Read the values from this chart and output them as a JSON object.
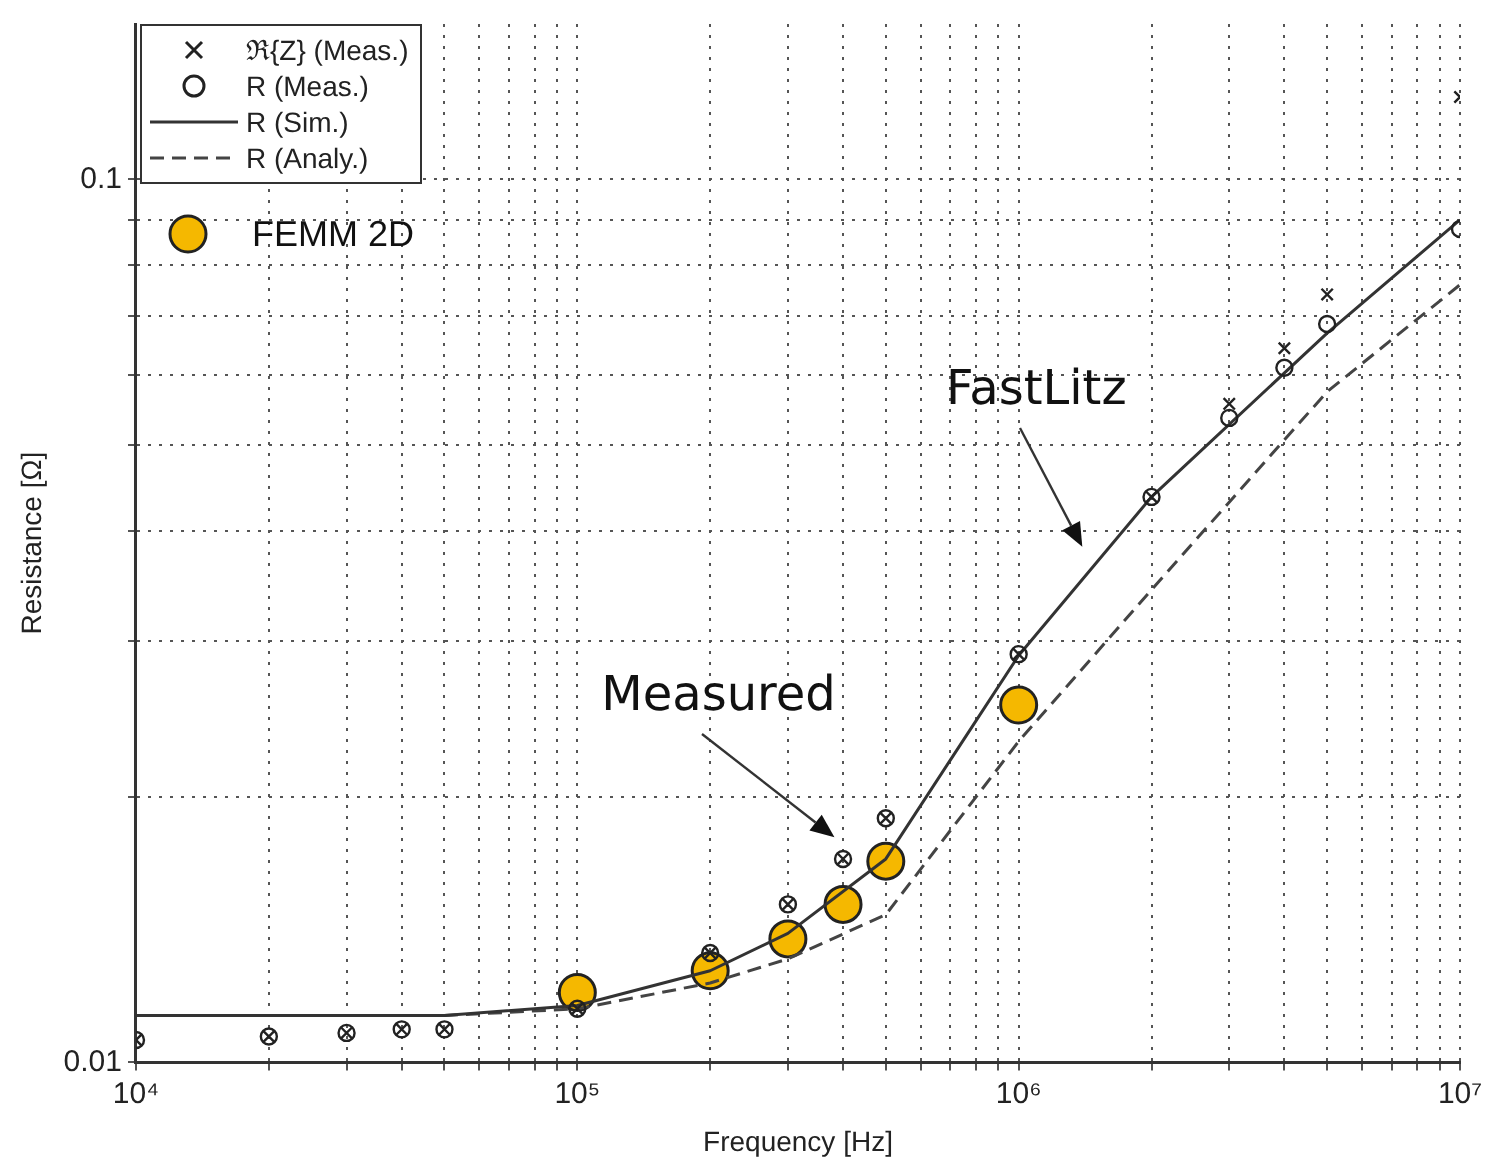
{
  "chart_data": {
    "type": "scatter",
    "xlabel": "Frequency [Hz]",
    "ylabel": "Resistance [Ω]",
    "log": "xy",
    "grid": true,
    "legend": "top left",
    "xlim": [
      10000,
      10000000
    ],
    "ylim": [
      0.01,
      0.15
    ],
    "xticks": [
      {
        "value": 10000,
        "label": "10⁴"
      },
      {
        "value": 20000,
        "label": null
      },
      {
        "value": 30000,
        "label": null
      },
      {
        "value": 40000,
        "label": null
      },
      {
        "value": 50000,
        "label": null
      },
      {
        "value": 60000,
        "label": null
      },
      {
        "value": 70000,
        "label": null
      },
      {
        "value": 80000,
        "label": null
      },
      {
        "value": 90000,
        "label": null
      },
      {
        "value": 100000,
        "label": "10⁵"
      },
      {
        "value": 200000,
        "label": null
      },
      {
        "value": 300000,
        "label": null
      },
      {
        "value": 400000,
        "label": null
      },
      {
        "value": 500000,
        "label": null
      },
      {
        "value": 600000,
        "label": null
      },
      {
        "value": 700000,
        "label": null
      },
      {
        "value": 800000,
        "label": null
      },
      {
        "value": 900000,
        "label": null
      },
      {
        "value": 1000000,
        "label": "10⁶"
      },
      {
        "value": 2000000,
        "label": null
      },
      {
        "value": 3000000,
        "label": null
      },
      {
        "value": 4000000,
        "label": null
      },
      {
        "value": 5000000,
        "label": null
      },
      {
        "value": 6000000,
        "label": null
      },
      {
        "value": 7000000,
        "label": null
      },
      {
        "value": 8000000,
        "label": null
      },
      {
        "value": 9000000,
        "label": null
      },
      {
        "value": 10000000,
        "label": "10⁷"
      }
    ],
    "yticks": [
      0.01,
      {
        "value": 0.02,
        "label": null
      },
      {
        "value": 0.03,
        "label": null
      },
      {
        "value": 0.04,
        "label": null
      },
      {
        "value": 0.05,
        "label": null
      },
      {
        "value": 0.06,
        "label": null
      },
      {
        "value": 0.07,
        "label": null
      },
      {
        "value": 0.08,
        "label": null
      },
      {
        "value": 0.09,
        "label": null
      },
      0.1
    ],
    "x": [
      10000,
      20000,
      30000,
      40000,
      50000,
      100000,
      200000,
      300000,
      400000,
      500000,
      1000000,
      2000000,
      3000000,
      4000000,
      5000000,
      10000000
    ],
    "series": [
      {
        "name": "ℜ{Z} (Meas.)",
        "marker": "cross",
        "color": "#222222",
        "values": [
          0.0106,
          0.0107,
          0.0108,
          0.0109,
          0.0109,
          0.0115,
          0.0133,
          0.0151,
          0.017,
          0.0189,
          0.029,
          0.0437,
          0.0557,
          0.0644,
          0.0741,
          0.124
        ]
      },
      {
        "name": "R (Meas.)",
        "marker": "circle",
        "color": "#222222",
        "values": [
          0.0106,
          0.0107,
          0.0108,
          0.0109,
          0.0109,
          0.0115,
          0.0133,
          0.0151,
          0.017,
          0.0189,
          0.029,
          0.0437,
          0.0537,
          0.0612,
          0.0686,
          0.0879
        ]
      },
      {
        "name": "R (Sim.)",
        "type": "line",
        "line_style": "solid",
        "color": "#333333",
        "x": [
          10000,
          50000,
          100000,
          200000,
          300000,
          500000,
          700000,
          1000000,
          2000000,
          5000000,
          10000000
        ],
        "values": [
          0.0113,
          0.0113,
          0.0116,
          0.0127,
          0.014,
          0.017,
          0.022,
          0.0289,
          0.0437,
          0.067,
          0.09
        ]
      },
      {
        "name": "R (Analy.)",
        "type": "line",
        "line_style": "dashed",
        "color": "#444444",
        "x": [
          10000,
          50000,
          100000,
          200000,
          300000,
          500000,
          1000000,
          2000000,
          5000000,
          10000000
        ],
        "values": [
          0.0113,
          0.0113,
          0.0115,
          0.0123,
          0.0131,
          0.0147,
          0.0231,
          0.0343,
          0.0575,
          0.076
        ]
      },
      {
        "name": "FEMM 2D",
        "marker": "circle",
        "color": "#f5b800",
        "x": [
          100000,
          200000,
          300000,
          400000,
          500000,
          1000000
        ],
        "values": [
          0.012,
          0.0127,
          0.0138,
          0.0151,
          0.0169,
          0.0254
        ]
      }
    ],
    "annotations": [
      "FastLitz",
      "Measured"
    ]
  }
}
